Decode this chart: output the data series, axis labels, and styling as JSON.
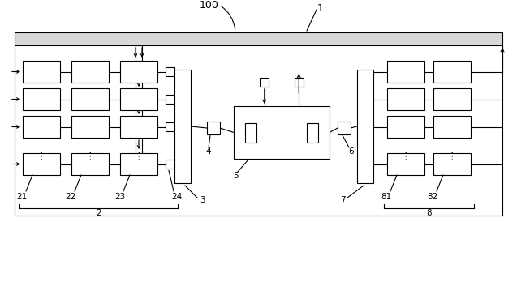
{
  "bg_color": "#ffffff",
  "line_color": "#000000",
  "label_color": "#000000",
  "fig_width": 6.37,
  "fig_height": 3.74,
  "title": "100",
  "label_1": "1",
  "label_2": "2",
  "label_21": "21",
  "label_22": "22",
  "label_23": "23",
  "label_24": "24",
  "label_3": "3",
  "label_4": "4",
  "label_5": "5",
  "label_6": "6",
  "label_7": "7",
  "label_8": "8",
  "label_81": "81",
  "label_82": "82"
}
